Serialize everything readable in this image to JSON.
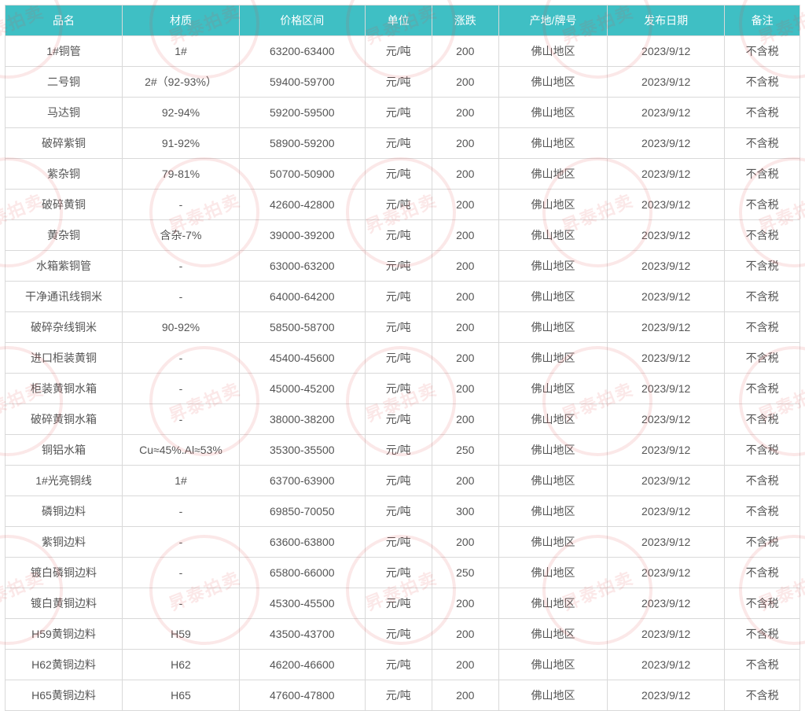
{
  "table": {
    "header_bg": "#3fbfc4",
    "header_fg": "#ffffff",
    "border_color": "#d9d9d9",
    "text_color": "#555555",
    "columns": [
      {
        "key": "name",
        "label": "品名"
      },
      {
        "key": "mat",
        "label": "材质"
      },
      {
        "key": "price",
        "label": "价格区间"
      },
      {
        "key": "unit",
        "label": "单位"
      },
      {
        "key": "change",
        "label": "涨跌"
      },
      {
        "key": "origin",
        "label": "产地/牌号"
      },
      {
        "key": "date",
        "label": "发布日期"
      },
      {
        "key": "note",
        "label": "备注"
      }
    ],
    "rows": [
      {
        "name": "1#铜管",
        "mat": "1#",
        "price": "63200-63400",
        "unit": "元/吨",
        "change": "200",
        "origin": "佛山地区",
        "date": "2023/9/12",
        "note": "不含税"
      },
      {
        "name": "二号铜",
        "mat": "2#（92-93%）",
        "price": "59400-59700",
        "unit": "元/吨",
        "change": "200",
        "origin": "佛山地区",
        "date": "2023/9/12",
        "note": "不含税"
      },
      {
        "name": "马达铜",
        "mat": "92-94%",
        "price": "59200-59500",
        "unit": "元/吨",
        "change": "200",
        "origin": "佛山地区",
        "date": "2023/9/12",
        "note": "不含税"
      },
      {
        "name": "破碎紫铜",
        "mat": "91-92%",
        "price": "58900-59200",
        "unit": "元/吨",
        "change": "200",
        "origin": "佛山地区",
        "date": "2023/9/12",
        "note": "不含税"
      },
      {
        "name": "紫杂铜",
        "mat": "79-81%",
        "price": "50700-50900",
        "unit": "元/吨",
        "change": "200",
        "origin": "佛山地区",
        "date": "2023/9/12",
        "note": "不含税"
      },
      {
        "name": "破碎黄铜",
        "mat": "-",
        "price": "42600-42800",
        "unit": "元/吨",
        "change": "200",
        "origin": "佛山地区",
        "date": "2023/9/12",
        "note": "不含税"
      },
      {
        "name": "黄杂铜",
        "mat": "含杂-7%",
        "price": "39000-39200",
        "unit": "元/吨",
        "change": "200",
        "origin": "佛山地区",
        "date": "2023/9/12",
        "note": "不含税"
      },
      {
        "name": "水箱紫铜管",
        "mat": "-",
        "price": "63000-63200",
        "unit": "元/吨",
        "change": "200",
        "origin": "佛山地区",
        "date": "2023/9/12",
        "note": "不含税"
      },
      {
        "name": "干净通讯线铜米",
        "mat": "-",
        "price": "64000-64200",
        "unit": "元/吨",
        "change": "200",
        "origin": "佛山地区",
        "date": "2023/9/12",
        "note": "不含税"
      },
      {
        "name": "破碎杂线铜米",
        "mat": "90-92%",
        "price": "58500-58700",
        "unit": "元/吨",
        "change": "200",
        "origin": "佛山地区",
        "date": "2023/9/12",
        "note": "不含税"
      },
      {
        "name": "进口柜装黄铜",
        "mat": "-",
        "price": "45400-45600",
        "unit": "元/吨",
        "change": "200",
        "origin": "佛山地区",
        "date": "2023/9/12",
        "note": "不含税"
      },
      {
        "name": "柜装黄铜水箱",
        "mat": "-",
        "price": "45000-45200",
        "unit": "元/吨",
        "change": "200",
        "origin": "佛山地区",
        "date": "2023/9/12",
        "note": "不含税"
      },
      {
        "name": "破碎黄铜水箱",
        "mat": "-",
        "price": "38000-38200",
        "unit": "元/吨",
        "change": "200",
        "origin": "佛山地区",
        "date": "2023/9/12",
        "note": "不含税"
      },
      {
        "name": "铜铝水箱",
        "mat": "Cu≈45%.Al≈53%",
        "price": "35300-35500",
        "unit": "元/吨",
        "change": "250",
        "origin": "佛山地区",
        "date": "2023/9/12",
        "note": "不含税"
      },
      {
        "name": "1#光亮铜线",
        "mat": "1#",
        "price": "63700-63900",
        "unit": "元/吨",
        "change": "200",
        "origin": "佛山地区",
        "date": "2023/9/12",
        "note": "不含税"
      },
      {
        "name": "磷铜边料",
        "mat": "-",
        "price": "69850-70050",
        "unit": "元/吨",
        "change": "300",
        "origin": "佛山地区",
        "date": "2023/9/12",
        "note": "不含税"
      },
      {
        "name": "紫铜边料",
        "mat": "-",
        "price": "63600-63800",
        "unit": "元/吨",
        "change": "200",
        "origin": "佛山地区",
        "date": "2023/9/12",
        "note": "不含税"
      },
      {
        "name": "镀白磷铜边料",
        "mat": "-",
        "price": "65800-66000",
        "unit": "元/吨",
        "change": "250",
        "origin": "佛山地区",
        "date": "2023/9/12",
        "note": "不含税"
      },
      {
        "name": "镀白黄铜边料",
        "mat": "-",
        "price": "45300-45500",
        "unit": "元/吨",
        "change": "200",
        "origin": "佛山地区",
        "date": "2023/9/12",
        "note": "不含税"
      },
      {
        "name": "H59黄铜边料",
        "mat": "H59",
        "price": "43500-43700",
        "unit": "元/吨",
        "change": "200",
        "origin": "佛山地区",
        "date": "2023/9/12",
        "note": "不含税"
      },
      {
        "name": "H62黄铜边料",
        "mat": "H62",
        "price": "46200-46600",
        "unit": "元/吨",
        "change": "200",
        "origin": "佛山地区",
        "date": "2023/9/12",
        "note": "不含税"
      },
      {
        "name": "H65黄铜边料",
        "mat": "H65",
        "price": "47600-47800",
        "unit": "元/吨",
        "change": "200",
        "origin": "佛山地区",
        "date": "2023/9/12",
        "note": "不含税"
      }
    ]
  },
  "watermark": {
    "text": "昇泰拍卖",
    "color": "#e04848",
    "opacity": 0.12,
    "grid": {
      "cols": 5,
      "rows": 4,
      "xgap": 250,
      "ygap": 240,
      "xoffset": -60,
      "yoffset": -40
    }
  }
}
